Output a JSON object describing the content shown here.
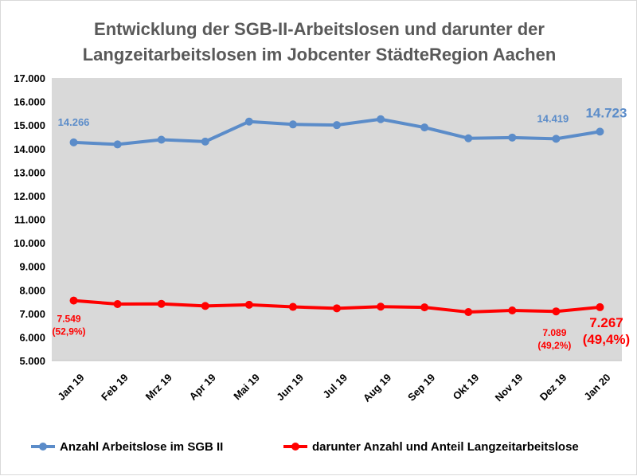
{
  "chart_data": {
    "type": "line",
    "title_lines": [
      "Entwicklung der SGB-II-Arbeitslosen und darunter der",
      "Langzeitarbeitslosen im Jobcenter StädteRegion Aachen"
    ],
    "categories": [
      "Jan 19",
      "Feb 19",
      "Mrz 19",
      "Apr 19",
      "Mai 19",
      "Jun 19",
      "Jul 19",
      "Aug 19",
      "Sep 19",
      "Okt 19",
      "Nov 19",
      "Dez 19",
      "Jan 20"
    ],
    "ylim": [
      5000,
      17000
    ],
    "y_ticks": [
      5000,
      6000,
      7000,
      8000,
      9000,
      10000,
      11000,
      12000,
      13000,
      14000,
      15000,
      16000,
      17000
    ],
    "y_tick_labels": [
      "5.000",
      "6.000",
      "7.000",
      "8.000",
      "9.000",
      "10.000",
      "11.000",
      "12.000",
      "13.000",
      "14.000",
      "15.000",
      "16.000",
      "17.000"
    ],
    "grid": false,
    "plot_background": "#d9d9d9",
    "legend_position": "bottom",
    "series": [
      {
        "name": "Anzahl Arbeitslose im SGB II",
        "color": "#5b8cc9",
        "values": [
          14266,
          14180,
          14380,
          14300,
          15150,
          15030,
          15000,
          15250,
          14900,
          14440,
          14470,
          14419,
          14723
        ]
      },
      {
        "name": "darunter Anzahl und Anteil Langzeitarbeitslose",
        "color": "#ff0000",
        "values": [
          7549,
          7400,
          7410,
          7320,
          7370,
          7280,
          7220,
          7290,
          7260,
          7060,
          7130,
          7089,
          7267
        ]
      }
    ],
    "data_labels": [
      {
        "series": 0,
        "index": 0,
        "lines": [
          "14.266"
        ]
      },
      {
        "series": 0,
        "index": 11,
        "lines": [
          "14.419"
        ]
      },
      {
        "series": 0,
        "index": 12,
        "lines": [
          "14.723"
        ]
      },
      {
        "series": 1,
        "index": 0,
        "lines": [
          "7.549",
          "(52,9%)"
        ]
      },
      {
        "series": 1,
        "index": 11,
        "lines": [
          "7.089",
          "(49,2%)"
        ]
      },
      {
        "series": 1,
        "index": 12,
        "lines": [
          "7.267",
          "(49,4%)"
        ]
      }
    ]
  }
}
